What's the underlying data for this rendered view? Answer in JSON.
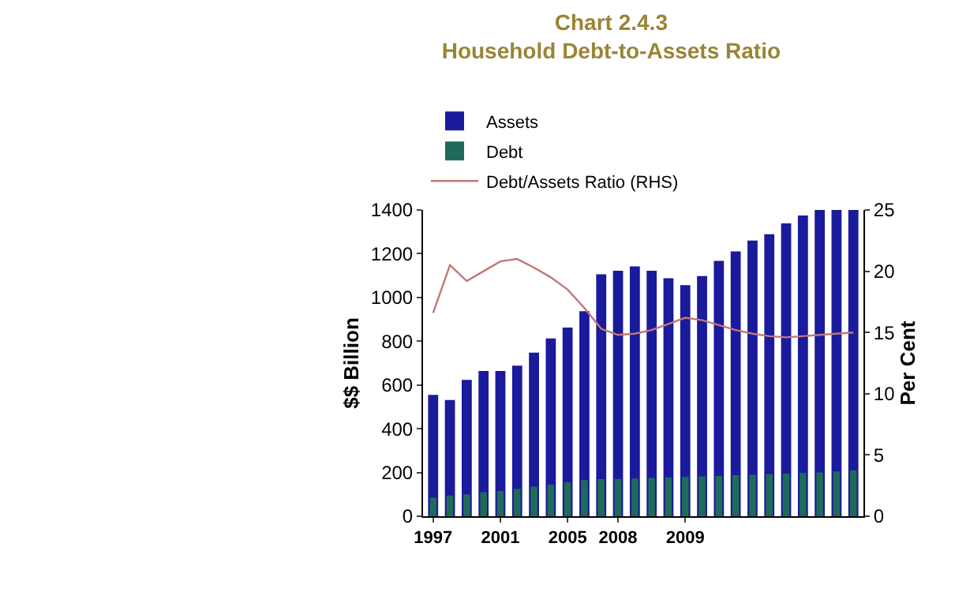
{
  "chart_data": {
    "type": "bar",
    "title": "Chart 2.4.3",
    "subtitle": "Household Debt-to-Assets Ratio",
    "ylabel": "$$ Billion",
    "y2label": "Per Cent",
    "categories": [
      "1997",
      null,
      null,
      null,
      "2001",
      null,
      null,
      null,
      "2005",
      null,
      null,
      "2008",
      null,
      null,
      null,
      "2009",
      null,
      null,
      null,
      null,
      null,
      null,
      null,
      null,
      null,
      null
    ],
    "series": [
      {
        "name": "Assets",
        "color": "#1a1a9c",
        "values": [
          555,
          531,
          623,
          664,
          664,
          688,
          748,
          813,
          862,
          937,
          1106,
          1122,
          1142,
          1122,
          1088,
          1056,
          1098,
          1167,
          1211,
          1260,
          1289,
          1339,
          1375,
          1400,
          1400,
          1400
        ]
      },
      {
        "name": "Debt",
        "color": "#1f6b5a",
        "values": [
          85,
          95,
          100,
          110,
          115,
          125,
          135,
          145,
          155,
          165,
          170,
          170,
          172,
          175,
          178,
          180,
          182,
          185,
          188,
          190,
          193,
          195,
          198,
          200,
          205,
          210
        ]
      },
      {
        "name": "Debt/Assets Ratio (RHS)",
        "type": "line",
        "axis": "y2",
        "color": "#c07878",
        "values": [
          16.6,
          20.5,
          19.2,
          20.0,
          20.8,
          21.0,
          20.3,
          19.5,
          18.5,
          17.0,
          15.3,
          14.8,
          14.9,
          15.2,
          15.7,
          16.2,
          16.0,
          15.6,
          15.2,
          14.9,
          14.7,
          14.6,
          14.7,
          14.8,
          14.9,
          15.0
        ]
      }
    ],
    "ylim": [
      0,
      1400
    ],
    "yticks": [
      0,
      200,
      400,
      600,
      800,
      1000,
      1200,
      1400
    ],
    "y2lim": [
      0,
      25
    ],
    "y2ticks": [
      0,
      5,
      10,
      15,
      20,
      25
    ],
    "legend": "top left",
    "grid": false,
    "marker": "none",
    "line_style": "solid"
  }
}
